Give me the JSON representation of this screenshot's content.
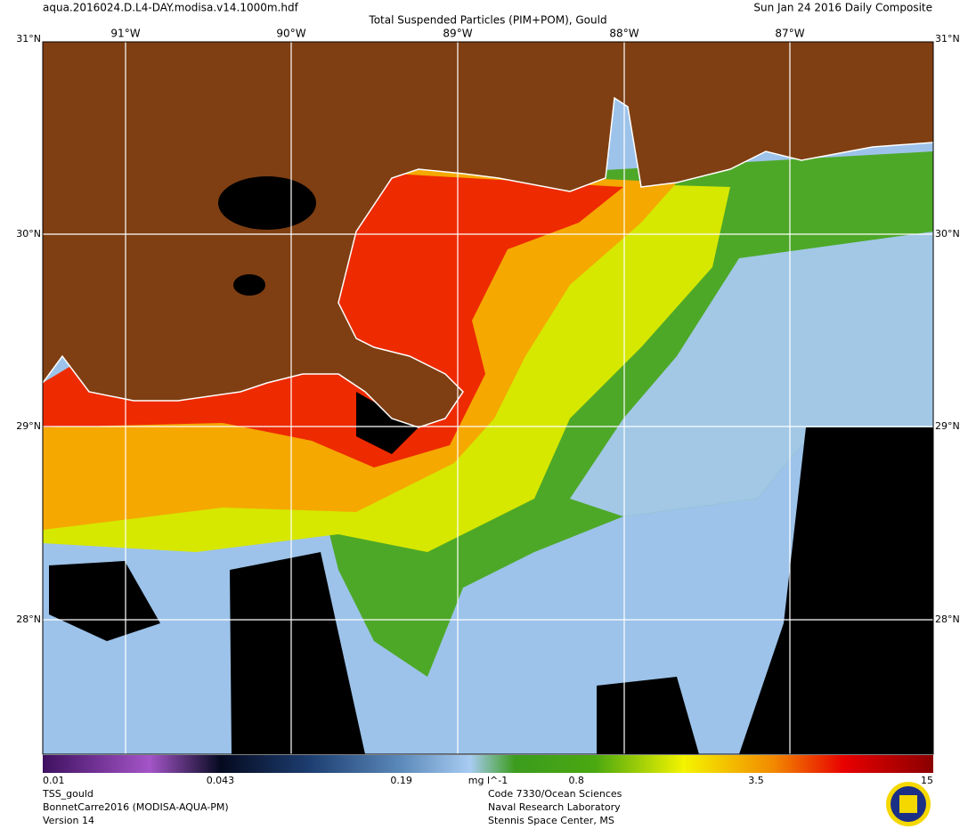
{
  "header": {
    "filename": "aqua.2016024.D.L4-DAY.modisa.v14.1000m.hdf",
    "title": "Total Suspended Particles (PIM+POM), Gould",
    "date": "Sun Jan 24 2016 Daily Composite"
  },
  "map": {
    "longitude_labels": [
      "91°W",
      "90°W",
      "89°W",
      "88°W",
      "87°W"
    ],
    "latitude_labels": [
      "31°N",
      "30°N",
      "29°N",
      "28°N"
    ]
  },
  "colorbar": {
    "ticks": [
      0.01,
      0.043,
      0.19,
      0.8,
      3.5,
      15
    ],
    "unit": "mg l^-1",
    "scale": "log"
  },
  "footer": {
    "product": [
      "TSS_gould",
      "BonnetCarre2016 (MODISA-AQUA-PM)",
      "Version 14"
    ],
    "institution": [
      "Code 7330/Ocean Sciences",
      "Naval Research Laboratory",
      "Stennis Space Center, MS"
    ]
  }
}
